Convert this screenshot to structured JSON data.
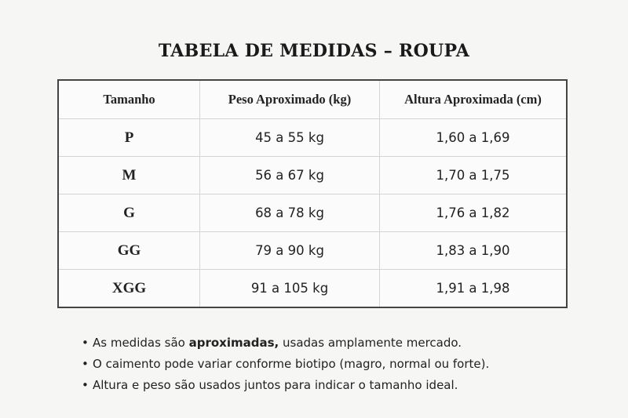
{
  "title": "TABELA DE MEDIDAS – ROUPA",
  "table": {
    "headers": [
      "Tamanho",
      "Peso Aproximado (kg)",
      "Altura Aproximada (cm)"
    ],
    "rows": [
      [
        "P",
        "45 a 55 kg",
        "1,60 a 1,69"
      ],
      [
        "M",
        "56 a 67 kg",
        "1,70 a 1,75"
      ],
      [
        "G",
        "68 a 78 kg",
        "1,76 a 1,82"
      ],
      [
        "GG",
        "79 a 90 kg",
        "1,83 a 1,90"
      ],
      [
        "XGG",
        "91 a 105 kg",
        "1,91 a 1,98"
      ]
    ]
  },
  "notes": [
    {
      "pre": "As medidas são ",
      "bold": "aproximadas,",
      "post": " usadas amplamente mercado."
    },
    {
      "pre": "O caimento pode variar conforme biotipo (magro, normal ou forte).",
      "bold": "",
      "post": ""
    },
    {
      "pre": "Altura e peso são usados juntos para indicar o tamanho ideal.",
      "bold": "",
      "post": ""
    }
  ],
  "bullet": "•"
}
